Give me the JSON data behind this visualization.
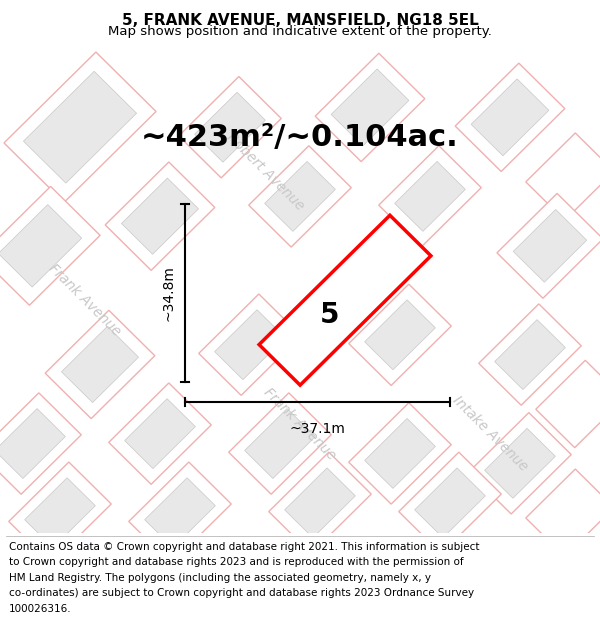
{
  "title": "5, FRANK AVENUE, MANSFIELD, NG18 5EL",
  "subtitle": "Map shows position and indicative extent of the property.",
  "area_text": "~423m²/~0.104ac.",
  "dim_vertical": "~34.8m",
  "dim_horizontal": "~37.1m",
  "plot_number": "5",
  "property_color": "#ff0000",
  "title_fontsize": 11,
  "subtitle_fontsize": 9.5,
  "area_fontsize": 22,
  "dim_fontsize": 10,
  "plot_num_fontsize": 20,
  "footer_fontsize": 7.5,
  "map_bg": "#f5f5f5",
  "block_fill": "#e8e8e8",
  "block_edge": "#c8c8c8",
  "block_lw": 0.5,
  "pink_edge": "#f0b0b0",
  "pink_lw": 1.0,
  "street_label_color": "#c8c8c8",
  "street_label_fontsize": 10,
  "footer_lines": [
    "Contains OS data © Crown copyright and database right 2021. This information is subject",
    "to Crown copyright and database rights 2023 and is reproduced with the permission of",
    "HM Land Registry. The polygons (including the associated geometry, namely x, y",
    "co-ordinates) are subject to Crown copyright and database rights 2023 Ordnance Survey",
    "100026316."
  ]
}
